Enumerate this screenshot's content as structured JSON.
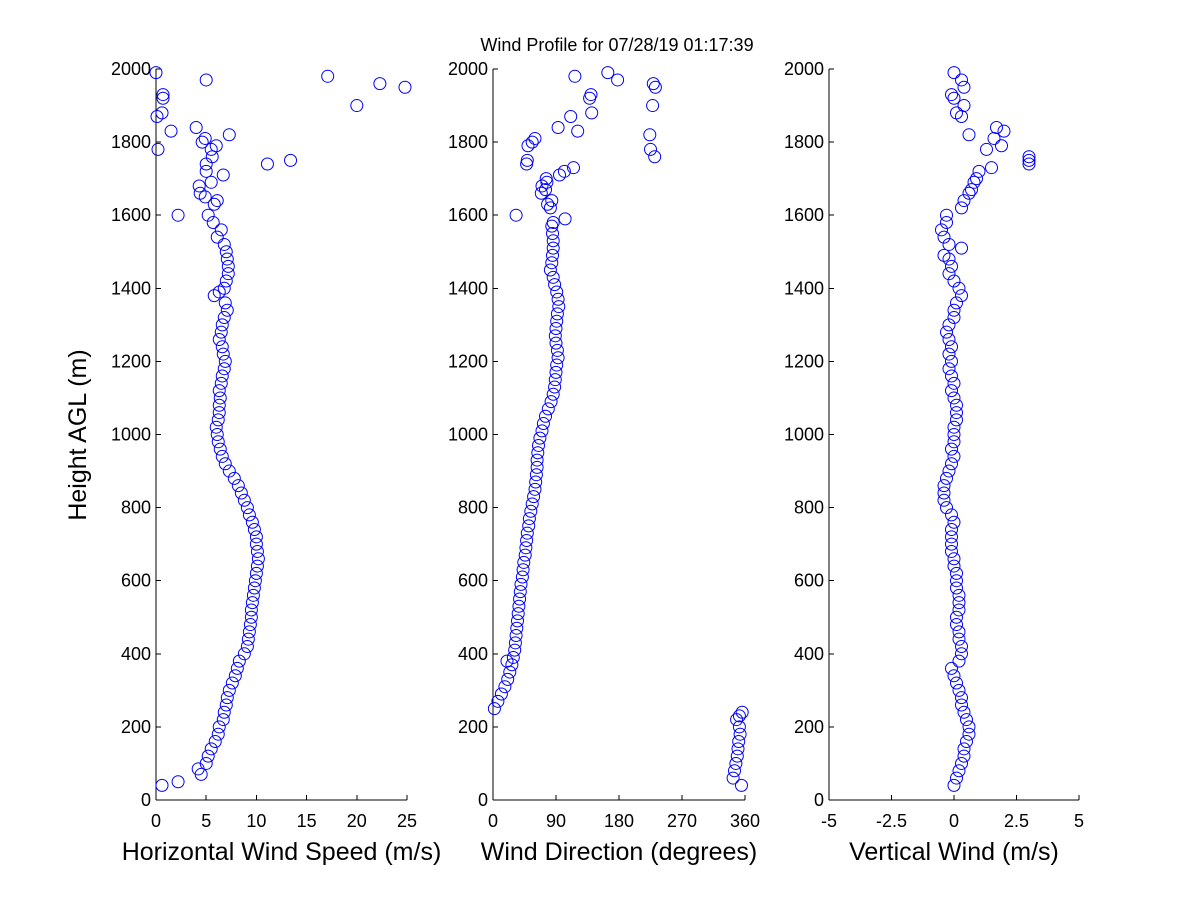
{
  "figure": {
    "title": "Wind Profile for  07/28/19 01:17:39",
    "ylabel": "Height AGL (m)"
  },
  "chart_data": [
    {
      "type": "scatter",
      "name": "horizontal-speed",
      "xlabel": "Horizontal Wind Speed (m/s)",
      "ylabel": "Height AGL (m)",
      "xlim": [
        0,
        25
      ],
      "ylim": [
        0,
        2000
      ],
      "xticks": [
        0,
        5,
        10,
        15,
        20,
        25
      ],
      "xtick_labels": [
        "0",
        "5",
        "10",
        "15",
        "20",
        "25"
      ],
      "yticks": [
        0,
        200,
        400,
        600,
        800,
        1000,
        1200,
        1400,
        1600,
        1800,
        2000
      ],
      "ytick_labels": [
        "0",
        "200",
        "400",
        "600",
        "800",
        "1000",
        "1200",
        "1400",
        "1600",
        "1800",
        "2000"
      ],
      "marker_color": "#0000ff",
      "points": [
        [
          0.6,
          40
        ],
        [
          2.2,
          50
        ],
        [
          4.5,
          70
        ],
        [
          4.2,
          85
        ],
        [
          5.0,
          100
        ],
        [
          5.2,
          120
        ],
        [
          5.5,
          140
        ],
        [
          5.9,
          160
        ],
        [
          6.2,
          180
        ],
        [
          6.3,
          200
        ],
        [
          6.7,
          220
        ],
        [
          6.8,
          240
        ],
        [
          7.0,
          260
        ],
        [
          7.1,
          280
        ],
        [
          7.3,
          300
        ],
        [
          7.6,
          320
        ],
        [
          7.9,
          340
        ],
        [
          8.1,
          360
        ],
        [
          8.3,
          380
        ],
        [
          8.8,
          400
        ],
        [
          9.1,
          420
        ],
        [
          9.2,
          440
        ],
        [
          9.3,
          460
        ],
        [
          9.4,
          480
        ],
        [
          9.5,
          500
        ],
        [
          9.5,
          520
        ],
        [
          9.6,
          540
        ],
        [
          9.7,
          560
        ],
        [
          9.8,
          580
        ],
        [
          9.9,
          600
        ],
        [
          10.0,
          620
        ],
        [
          10.1,
          640
        ],
        [
          10.2,
          660
        ],
        [
          10.1,
          680
        ],
        [
          10.0,
          700
        ],
        [
          10.0,
          720
        ],
        [
          9.8,
          740
        ],
        [
          9.6,
          760
        ],
        [
          9.3,
          780
        ],
        [
          9.1,
          800
        ],
        [
          8.8,
          820
        ],
        [
          8.5,
          840
        ],
        [
          8.2,
          860
        ],
        [
          7.8,
          880
        ],
        [
          7.3,
          900
        ],
        [
          6.9,
          920
        ],
        [
          6.6,
          940
        ],
        [
          6.4,
          960
        ],
        [
          6.2,
          980
        ],
        [
          6.1,
          1000
        ],
        [
          6.0,
          1020
        ],
        [
          6.2,
          1040
        ],
        [
          6.3,
          1060
        ],
        [
          6.3,
          1080
        ],
        [
          6.4,
          1100
        ],
        [
          6.3,
          1120
        ],
        [
          6.5,
          1140
        ],
        [
          6.6,
          1160
        ],
        [
          6.8,
          1180
        ],
        [
          6.9,
          1200
        ],
        [
          6.7,
          1220
        ],
        [
          6.6,
          1240
        ],
        [
          6.3,
          1260
        ],
        [
          6.5,
          1280
        ],
        [
          6.6,
          1300
        ],
        [
          6.8,
          1320
        ],
        [
          7.1,
          1340
        ],
        [
          6.9,
          1360
        ],
        [
          5.8,
          1380
        ],
        [
          6.3,
          1390
        ],
        [
          6.8,
          1400
        ],
        [
          7.0,
          1420
        ],
        [
          7.2,
          1440
        ],
        [
          7.2,
          1460
        ],
        [
          7.1,
          1480
        ],
        [
          7.0,
          1500
        ],
        [
          6.8,
          1520
        ],
        [
          6.1,
          1540
        ],
        [
          6.5,
          1560
        ],
        [
          5.7,
          1580
        ],
        [
          5.2,
          1600
        ],
        [
          2.2,
          1600
        ],
        [
          5.8,
          1630
        ],
        [
          6.1,
          1640
        ],
        [
          4.9,
          1650
        ],
        [
          4.4,
          1660
        ],
        [
          4.3,
          1680
        ],
        [
          5.5,
          1690
        ],
        [
          6.7,
          1710
        ],
        [
          5.0,
          1720
        ],
        [
          5.0,
          1740
        ],
        [
          11.1,
          1740
        ],
        [
          13.4,
          1750
        ],
        [
          5.6,
          1760
        ],
        [
          5.5,
          1780
        ],
        [
          0.2,
          1780
        ],
        [
          6.0,
          1790
        ],
        [
          4.6,
          1800
        ],
        [
          4.9,
          1810
        ],
        [
          7.3,
          1820
        ],
        [
          1.5,
          1830
        ],
        [
          4.0,
          1840
        ],
        [
          0.1,
          1870
        ],
        [
          0.6,
          1880
        ],
        [
          20.0,
          1900
        ],
        [
          0.7,
          1920
        ],
        [
          0.7,
          1930
        ],
        [
          24.8,
          1950
        ],
        [
          22.3,
          1960
        ],
        [
          5.0,
          1970
        ],
        [
          17.1,
          1980
        ],
        [
          0.0,
          1990
        ]
      ]
    },
    {
      "type": "scatter",
      "name": "wind-direction",
      "xlabel": "Wind Direction (degrees)",
      "ylabel": "",
      "xlim": [
        0,
        360
      ],
      "ylim": [
        0,
        2000
      ],
      "xticks": [
        0,
        90,
        180,
        270,
        360
      ],
      "xtick_labels": [
        "0",
        "90",
        "180",
        "270",
        "360"
      ],
      "yticks": [
        0,
        200,
        400,
        600,
        800,
        1000,
        1200,
        1400,
        1600,
        1800,
        2000
      ],
      "ytick_labels": [
        "0",
        "200",
        "400",
        "600",
        "800",
        "1000",
        "1200",
        "1400",
        "1600",
        "1800",
        "2000"
      ],
      "marker_color": "#0000ff",
      "points": [
        [
          355,
          40
        ],
        [
          343,
          60
        ],
        [
          345,
          80
        ],
        [
          347,
          100
        ],
        [
          349,
          120
        ],
        [
          350,
          140
        ],
        [
          351,
          160
        ],
        [
          353,
          180
        ],
        [
          352,
          200
        ],
        [
          348,
          220
        ],
        [
          352,
          230
        ],
        [
          356,
          240
        ],
        [
          2,
          250
        ],
        [
          7,
          270
        ],
        [
          12,
          290
        ],
        [
          17,
          310
        ],
        [
          21,
          330
        ],
        [
          24,
          350
        ],
        [
          27,
          370
        ],
        [
          20,
          380
        ],
        [
          29,
          390
        ],
        [
          31,
          410
        ],
        [
          32,
          430
        ],
        [
          33,
          450
        ],
        [
          34,
          470
        ],
        [
          35,
          490
        ],
        [
          36,
          510
        ],
        [
          37,
          530
        ],
        [
          38,
          550
        ],
        [
          39,
          570
        ],
        [
          40,
          590
        ],
        [
          42,
          610
        ],
        [
          43,
          630
        ],
        [
          44,
          650
        ],
        [
          46,
          670
        ],
        [
          47,
          690
        ],
        [
          48,
          710
        ],
        [
          49,
          730
        ],
        [
          51,
          750
        ],
        [
          52,
          770
        ],
        [
          54,
          790
        ],
        [
          56,
          810
        ],
        [
          58,
          830
        ],
        [
          60,
          850
        ],
        [
          61,
          870
        ],
        [
          62,
          890
        ],
        [
          63,
          910
        ],
        [
          63,
          930
        ],
        [
          64,
          950
        ],
        [
          65,
          970
        ],
        [
          67,
          990
        ],
        [
          70,
          1010
        ],
        [
          72,
          1030
        ],
        [
          75,
          1050
        ],
        [
          79,
          1070
        ],
        [
          83,
          1090
        ],
        [
          86,
          1110
        ],
        [
          88,
          1130
        ],
        [
          89,
          1150
        ],
        [
          90,
          1170
        ],
        [
          91,
          1190
        ],
        [
          93,
          1210
        ],
        [
          92,
          1230
        ],
        [
          90,
          1250
        ],
        [
          89,
          1270
        ],
        [
          90,
          1290
        ],
        [
          91,
          1310
        ],
        [
          92,
          1330
        ],
        [
          94,
          1350
        ],
        [
          93,
          1370
        ],
        [
          91,
          1390
        ],
        [
          88,
          1410
        ],
        [
          86,
          1430
        ],
        [
          82,
          1450
        ],
        [
          84,
          1470
        ],
        [
          85,
          1490
        ],
        [
          86,
          1510
        ],
        [
          86,
          1530
        ],
        [
          85,
          1550
        ],
        [
          84,
          1570
        ],
        [
          86,
          1580
        ],
        [
          103,
          1590
        ],
        [
          33,
          1600
        ],
        [
          82,
          1620
        ],
        [
          78,
          1630
        ],
        [
          84,
          1640
        ],
        [
          69,
          1660
        ],
        [
          75,
          1670
        ],
        [
          70,
          1680
        ],
        [
          77,
          1690
        ],
        [
          76,
          1700
        ],
        [
          95,
          1710
        ],
        [
          102,
          1720
        ],
        [
          115,
          1730
        ],
        [
          48,
          1740
        ],
        [
          49,
          1750
        ],
        [
          50,
          1790
        ],
        [
          56,
          1800
        ],
        [
          60,
          1810
        ],
        [
          93,
          1840
        ],
        [
          121,
          1830
        ],
        [
          231,
          1760
        ],
        [
          225,
          1780
        ],
        [
          224,
          1820
        ],
        [
          111,
          1870
        ],
        [
          141,
          1880
        ],
        [
          228,
          1900
        ],
        [
          138,
          1920
        ],
        [
          140,
          1930
        ],
        [
          232,
          1950
        ],
        [
          229,
          1960
        ],
        [
          178,
          1970
        ],
        [
          117,
          1980
        ],
        [
          164,
          1990
        ]
      ]
    },
    {
      "type": "scatter",
      "name": "vertical-wind",
      "xlabel": "Vertical Wind (m/s)",
      "ylabel": "",
      "xlim": [
        -5,
        5
      ],
      "ylim": [
        0,
        2000
      ],
      "xticks": [
        -5,
        -2.5,
        0,
        2.5,
        5
      ],
      "xtick_labels": [
        "-5",
        "-2.5",
        "0",
        "2.5",
        "5"
      ],
      "yticks": [
        0,
        200,
        400,
        600,
        800,
        1000,
        1200,
        1400,
        1600,
        1800,
        2000
      ],
      "ytick_labels": [
        "0",
        "200",
        "400",
        "600",
        "800",
        "1000",
        "1200",
        "1400",
        "1600",
        "1800",
        "2000"
      ],
      "marker_color": "#0000ff",
      "points": [
        [
          0.0,
          40
        ],
        [
          0.1,
          60
        ],
        [
          0.2,
          80
        ],
        [
          0.3,
          100
        ],
        [
          0.4,
          120
        ],
        [
          0.4,
          140
        ],
        [
          0.5,
          160
        ],
        [
          0.6,
          180
        ],
        [
          0.6,
          200
        ],
        [
          0.5,
          220
        ],
        [
          0.4,
          240
        ],
        [
          0.3,
          260
        ],
        [
          0.3,
          280
        ],
        [
          0.2,
          300
        ],
        [
          0.1,
          320
        ],
        [
          0.0,
          340
        ],
        [
          -0.1,
          360
        ],
        [
          0.2,
          380
        ],
        [
          0.3,
          400
        ],
        [
          0.3,
          420
        ],
        [
          0.2,
          440
        ],
        [
          0.2,
          460
        ],
        [
          0.1,
          480
        ],
        [
          0.1,
          500
        ],
        [
          0.2,
          520
        ],
        [
          0.2,
          540
        ],
        [
          0.2,
          560
        ],
        [
          0.1,
          580
        ],
        [
          0.1,
          600
        ],
        [
          0.1,
          620
        ],
        [
          0.0,
          640
        ],
        [
          0.0,
          660
        ],
        [
          -0.1,
          680
        ],
        [
          -0.1,
          700
        ],
        [
          -0.1,
          720
        ],
        [
          -0.1,
          740
        ],
        [
          0.0,
          760
        ],
        [
          -0.1,
          780
        ],
        [
          -0.3,
          800
        ],
        [
          -0.4,
          820
        ],
        [
          -0.4,
          840
        ],
        [
          -0.4,
          860
        ],
        [
          -0.3,
          880
        ],
        [
          -0.2,
          900
        ],
        [
          -0.1,
          920
        ],
        [
          0.0,
          940
        ],
        [
          -0.1,
          960
        ],
        [
          0.0,
          980
        ],
        [
          0.0,
          1000
        ],
        [
          0.0,
          1020
        ],
        [
          0.1,
          1040
        ],
        [
          0.1,
          1060
        ],
        [
          0.1,
          1080
        ],
        [
          0.0,
          1100
        ],
        [
          -0.1,
          1120
        ],
        [
          0.0,
          1140
        ],
        [
          -0.1,
          1160
        ],
        [
          -0.2,
          1180
        ],
        [
          -0.1,
          1200
        ],
        [
          -0.2,
          1220
        ],
        [
          -0.1,
          1240
        ],
        [
          -0.2,
          1260
        ],
        [
          -0.3,
          1280
        ],
        [
          -0.2,
          1300
        ],
        [
          0.0,
          1320
        ],
        [
          0.0,
          1340
        ],
        [
          0.1,
          1360
        ],
        [
          0.3,
          1380
        ],
        [
          0.2,
          1400
        ],
        [
          0.0,
          1420
        ],
        [
          -0.2,
          1440
        ],
        [
          -0.1,
          1460
        ],
        [
          -0.2,
          1480
        ],
        [
          -0.4,
          1490
        ],
        [
          0.3,
          1510
        ],
        [
          -0.2,
          1520
        ],
        [
          -0.4,
          1540
        ],
        [
          -0.5,
          1560
        ],
        [
          -0.3,
          1580
        ],
        [
          -0.3,
          1600
        ],
        [
          0.3,
          1620
        ],
        [
          0.4,
          1640
        ],
        [
          0.6,
          1660
        ],
        [
          0.7,
          1670
        ],
        [
          0.8,
          1690
        ],
        [
          0.9,
          1700
        ],
        [
          1.0,
          1720
        ],
        [
          1.5,
          1730
        ],
        [
          3.0,
          1740
        ],
        [
          3.0,
          1750
        ],
        [
          3.0,
          1760
        ],
        [
          1.3,
          1780
        ],
        [
          1.9,
          1790
        ],
        [
          1.6,
          1810
        ],
        [
          2.0,
          1830
        ],
        [
          1.7,
          1840
        ],
        [
          0.6,
          1820
        ],
        [
          0.3,
          1870
        ],
        [
          0.1,
          1880
        ],
        [
          0.4,
          1900
        ],
        [
          0.0,
          1920
        ],
        [
          -0.1,
          1930
        ],
        [
          0.4,
          1950
        ],
        [
          0.3,
          1970
        ],
        [
          0.0,
          1990
        ]
      ]
    }
  ]
}
